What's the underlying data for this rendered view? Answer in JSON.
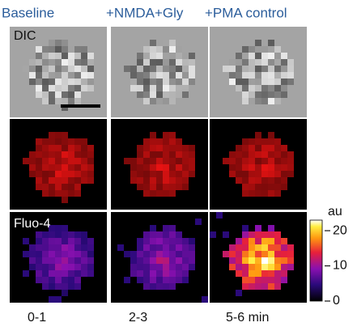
{
  "columns": [
    {
      "title": "Baseline",
      "time": "0-1"
    },
    {
      "title": "+NMDA+Gly",
      "time": "2-3"
    },
    {
      "title": "+PMA control",
      "time": "5-6 min"
    }
  ],
  "row_labels": {
    "dic": "DIC",
    "fluo": "Fluo-4"
  },
  "colorbar": {
    "label": "au",
    "lim": [
      0,
      23
    ],
    "ticks": [
      0,
      10,
      20
    ]
  }
}
